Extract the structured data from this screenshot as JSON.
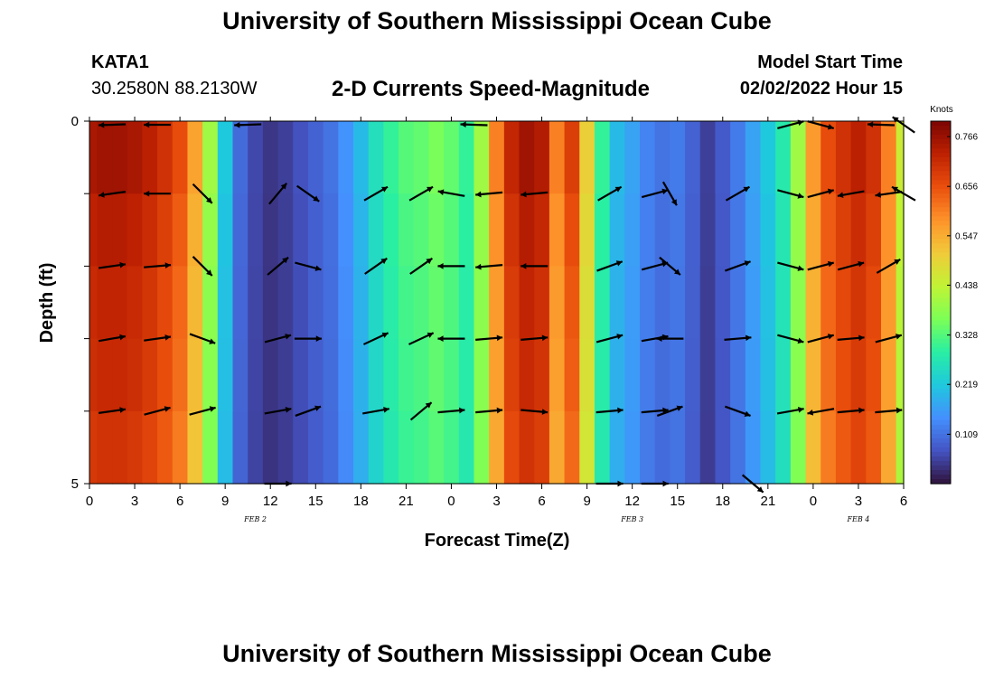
{
  "header": {
    "title": "University of Southern Mississippi Ocean Cube",
    "station": "KATA1",
    "coords": "30.2580N  88.2130W",
    "subtitle": "2-D Currents Speed-Magnitude",
    "model_start_label": "Model Start Time",
    "model_start_value": "02/02/2022 Hour 15"
  },
  "footer": {
    "title": "University of Southern Mississippi Ocean Cube"
  },
  "colors": {
    "palette": [
      "#30123b",
      "#4454c4",
      "#4490fe",
      "#1fc8de",
      "#29efa2",
      "#7dff56",
      "#c1f334",
      "#f1ca3a",
      "#fe922a",
      "#ea4f0d",
      "#be2102",
      "#7a0403"
    ]
  },
  "chart_data": {
    "type": "heatmap",
    "xlabel": "Forecast Time(Z)",
    "ylabel": "Depth (ft)",
    "x_tick_labels": [
      "0",
      "3",
      "6",
      "9",
      "12",
      "15",
      "18",
      "21",
      "0",
      "3",
      "6",
      "9",
      "12",
      "15",
      "18",
      "21",
      "0",
      "3",
      "6"
    ],
    "x_range_hours": [
      0,
      54
    ],
    "date_labels": [
      {
        "hour": 11,
        "text": "FEB 2"
      },
      {
        "hour": 36,
        "text": "FEB 3"
      },
      {
        "hour": 51,
        "text": "FEB 4"
      }
    ],
    "y_tick_labels": [
      {
        "depth": 0,
        "text": "0"
      },
      {
        "depth": 5,
        "text": "5"
      }
    ],
    "y_range": [
      0,
      5
    ],
    "colorbar": {
      "title": "Knots",
      "min": 0,
      "max": 0.8,
      "tick_labels": [
        "0.766",
        "0.656",
        "0.547",
        "0.438",
        "0.328",
        "0.219",
        "0.109"
      ],
      "tick_values": [
        0.766,
        0.656,
        0.547,
        0.438,
        0.328,
        0.219,
        0.109
      ]
    },
    "speed_knots_by_hour": [
      0.75,
      0.76,
      0.76,
      0.75,
      0.73,
      0.7,
      0.66,
      0.56,
      0.4,
      0.22,
      0.1,
      0.06,
      0.04,
      0.05,
      0.07,
      0.09,
      0.11,
      0.15,
      0.2,
      0.26,
      0.3,
      0.33,
      0.34,
      0.36,
      0.34,
      0.3,
      0.4,
      0.6,
      0.72,
      0.76,
      0.74,
      0.6,
      0.68,
      0.5,
      0.3,
      0.2,
      0.17,
      0.13,
      0.11,
      0.12,
      0.09,
      0.05,
      0.08,
      0.12,
      0.17,
      0.22,
      0.28,
      0.4,
      0.57,
      0.66,
      0.7,
      0.73,
      0.7,
      0.6,
      0.45
    ],
    "row_factors": [
      1.0,
      0.97,
      0.95,
      0.94,
      0.92
    ],
    "vectors": [
      {
        "hour": 1.5,
        "depth": 0.05,
        "angle": 182
      },
      {
        "hour": 4.5,
        "depth": 0.05,
        "angle": 180
      },
      {
        "hour": 10.5,
        "depth": 0.05,
        "angle": 182
      },
      {
        "hour": 25.5,
        "depth": 0.05,
        "angle": 178
      },
      {
        "hour": 52.5,
        "depth": 0.05,
        "angle": 178
      },
      {
        "hour": 46.5,
        "depth": 0.05,
        "angle": 15
      },
      {
        "hour": 48.5,
        "depth": 0.05,
        "angle": 345
      },
      {
        "hour": 54,
        "depth": 0.05,
        "angle": 145
      },
      {
        "hour": 1.5,
        "depth": 1.0,
        "angle": 188
      },
      {
        "hour": 4.5,
        "depth": 1.0,
        "angle": 180
      },
      {
        "hour": 7.5,
        "depth": 1.0,
        "angle": 315
      },
      {
        "hour": 12.5,
        "depth": 1.0,
        "angle": 50
      },
      {
        "hour": 14.5,
        "depth": 1.0,
        "angle": 325
      },
      {
        "hour": 19.0,
        "depth": 1.0,
        "angle": 30
      },
      {
        "hour": 22.0,
        "depth": 1.0,
        "angle": 30
      },
      {
        "hour": 24.0,
        "depth": 1.0,
        "angle": 170
      },
      {
        "hour": 26.5,
        "depth": 1.0,
        "angle": 185
      },
      {
        "hour": 29.5,
        "depth": 1.0,
        "angle": 185
      },
      {
        "hour": 34.5,
        "depth": 1.0,
        "angle": 30
      },
      {
        "hour": 37.5,
        "depth": 1.0,
        "angle": 15
      },
      {
        "hour": 38.5,
        "depth": 1.0,
        "angle": 300
      },
      {
        "hour": 43.0,
        "depth": 1.0,
        "angle": 30
      },
      {
        "hour": 46.5,
        "depth": 1.0,
        "angle": 345
      },
      {
        "hour": 48.5,
        "depth": 1.0,
        "angle": 15
      },
      {
        "hour": 50.5,
        "depth": 1.0,
        "angle": 190
      },
      {
        "hour": 53.0,
        "depth": 1.0,
        "angle": 188
      },
      {
        "hour": 54,
        "depth": 1.0,
        "angle": 150
      },
      {
        "hour": 1.5,
        "depth": 2.0,
        "angle": 8
      },
      {
        "hour": 4.5,
        "depth": 2.0,
        "angle": 5
      },
      {
        "hour": 7.5,
        "depth": 2.0,
        "angle": 315
      },
      {
        "hour": 12.5,
        "depth": 2.0,
        "angle": 40
      },
      {
        "hour": 14.5,
        "depth": 2.0,
        "angle": 345
      },
      {
        "hour": 19.0,
        "depth": 2.0,
        "angle": 35
      },
      {
        "hour": 22.0,
        "depth": 2.0,
        "angle": 35
      },
      {
        "hour": 24.0,
        "depth": 2.0,
        "angle": 180
      },
      {
        "hour": 26.5,
        "depth": 2.0,
        "angle": 185
      },
      {
        "hour": 29.5,
        "depth": 2.0,
        "angle": 180
      },
      {
        "hour": 34.5,
        "depth": 2.0,
        "angle": 20
      },
      {
        "hour": 37.5,
        "depth": 2.0,
        "angle": 15
      },
      {
        "hour": 38.5,
        "depth": 2.0,
        "angle": 320
      },
      {
        "hour": 43.0,
        "depth": 2.0,
        "angle": 20
      },
      {
        "hour": 46.5,
        "depth": 2.0,
        "angle": 345
      },
      {
        "hour": 48.5,
        "depth": 2.0,
        "angle": 15
      },
      {
        "hour": 50.5,
        "depth": 2.0,
        "angle": 15
      },
      {
        "hour": 53.0,
        "depth": 2.0,
        "angle": 30
      },
      {
        "hour": 1.5,
        "depth": 3.0,
        "angle": 10
      },
      {
        "hour": 4.5,
        "depth": 3.0,
        "angle": 8
      },
      {
        "hour": 7.5,
        "depth": 3.0,
        "angle": 340
      },
      {
        "hour": 12.5,
        "depth": 3.0,
        "angle": 15
      },
      {
        "hour": 14.5,
        "depth": 3.0,
        "angle": 0
      },
      {
        "hour": 19.0,
        "depth": 3.0,
        "angle": 25
      },
      {
        "hour": 22.0,
        "depth": 3.0,
        "angle": 25
      },
      {
        "hour": 24.0,
        "depth": 3.0,
        "angle": 180
      },
      {
        "hour": 26.5,
        "depth": 3.0,
        "angle": 5
      },
      {
        "hour": 29.5,
        "depth": 3.0,
        "angle": 5
      },
      {
        "hour": 34.5,
        "depth": 3.0,
        "angle": 15
      },
      {
        "hour": 37.5,
        "depth": 3.0,
        "angle": 10
      },
      {
        "hour": 38.5,
        "depth": 3.0,
        "angle": 180
      },
      {
        "hour": 43.0,
        "depth": 3.0,
        "angle": 5
      },
      {
        "hour": 46.5,
        "depth": 3.0,
        "angle": 345
      },
      {
        "hour": 48.5,
        "depth": 3.0,
        "angle": 15
      },
      {
        "hour": 50.5,
        "depth": 3.0,
        "angle": 5
      },
      {
        "hour": 53.0,
        "depth": 3.0,
        "angle": 15
      },
      {
        "hour": 1.5,
        "depth": 4.0,
        "angle": 8
      },
      {
        "hour": 4.5,
        "depth": 4.0,
        "angle": 15
      },
      {
        "hour": 7.5,
        "depth": 4.0,
        "angle": 15
      },
      {
        "hour": 12.5,
        "depth": 4.0,
        "angle": 10
      },
      {
        "hour": 14.5,
        "depth": 4.0,
        "angle": 20
      },
      {
        "hour": 19.0,
        "depth": 4.0,
        "angle": 10
      },
      {
        "hour": 22.0,
        "depth": 4.0,
        "angle": 40
      },
      {
        "hour": 24.0,
        "depth": 4.0,
        "angle": 5
      },
      {
        "hour": 26.5,
        "depth": 4.0,
        "angle": 5
      },
      {
        "hour": 29.5,
        "depth": 4.0,
        "angle": 355
      },
      {
        "hour": 34.5,
        "depth": 4.0,
        "angle": 5
      },
      {
        "hour": 37.5,
        "depth": 4.0,
        "angle": 5
      },
      {
        "hour": 38.5,
        "depth": 4.0,
        "angle": 20
      },
      {
        "hour": 43.0,
        "depth": 4.0,
        "angle": 340
      },
      {
        "hour": 46.5,
        "depth": 4.0,
        "angle": 10
      },
      {
        "hour": 48.5,
        "depth": 4.0,
        "angle": 190
      },
      {
        "hour": 50.5,
        "depth": 4.0,
        "angle": 5
      },
      {
        "hour": 53.0,
        "depth": 4.0,
        "angle": 5
      },
      {
        "hour": 12.5,
        "depth": 5.0,
        "angle": 0
      },
      {
        "hour": 34.5,
        "depth": 5.0,
        "angle": 0
      },
      {
        "hour": 37.5,
        "depth": 5.0,
        "angle": 0
      },
      {
        "hour": 44.0,
        "depth": 5.0,
        "angle": 320
      }
    ]
  }
}
